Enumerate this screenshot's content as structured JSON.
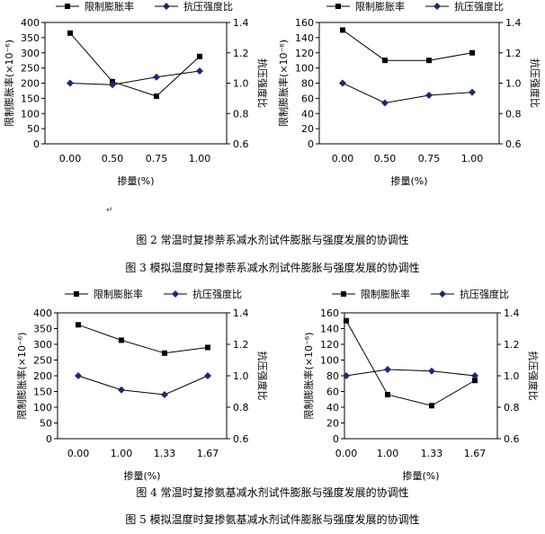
{
  "paragraph_mark": "↵",
  "chart_data": [
    {
      "type": "line",
      "categories": [
        "0.00",
        "0.50",
        "0.75",
        "1.00"
      ],
      "xlabel": "掺量(%)",
      "ylabel": "限制膨胀率(×10⁻⁶)",
      "y2label": "抗压强度比",
      "ylim": [
        0,
        400
      ],
      "yticks": [
        0,
        50,
        100,
        150,
        200,
        250,
        300,
        350,
        400
      ],
      "y2lim": [
        0.6,
        1.4
      ],
      "y2ticks": [
        "0.6",
        "0.8",
        "1.0",
        "1.2",
        "1.4"
      ],
      "legend": "top",
      "series": [
        {
          "name": "限制膨胀率",
          "axis": "left",
          "marker": "square",
          "values": [
            365,
            205,
            157,
            288
          ]
        },
        {
          "name": "抗压强度比",
          "axis": "right",
          "marker": "diamond",
          "values": [
            1.0,
            0.99,
            1.04,
            1.08
          ]
        }
      ]
    },
    {
      "type": "line",
      "categories": [
        "0.00",
        "0.50",
        "0.75",
        "1.00"
      ],
      "xlabel": "掺量(%)",
      "ylabel": "限制膨胀率(×10⁻⁶)",
      "y2label": "抗压强度比",
      "ylim": [
        0,
        160
      ],
      "yticks": [
        0,
        20,
        40,
        60,
        80,
        100,
        120,
        140,
        160
      ],
      "y2lim": [
        0.6,
        1.4
      ],
      "y2ticks": [
        "0.6",
        "0.8",
        "1.0",
        "1.2",
        "1.4"
      ],
      "legend": "top",
      "series": [
        {
          "name": "限制膨胀率",
          "axis": "left",
          "marker": "square",
          "values": [
            150,
            110,
            110,
            120
          ]
        },
        {
          "name": "抗压强度比",
          "axis": "right",
          "marker": "diamond",
          "values": [
            1.0,
            0.87,
            0.92,
            0.94
          ]
        }
      ]
    },
    {
      "type": "line",
      "categories": [
        "0.00",
        "1.00",
        "1.33",
        "1.67"
      ],
      "xlabel": "掺量(%)",
      "ylabel": "限制膨胀率(×10⁻⁶)",
      "y2label": "抗压强度比",
      "ylim": [
        0,
        400
      ],
      "yticks": [
        0,
        50,
        100,
        150,
        200,
        250,
        300,
        350,
        400
      ],
      "y2lim": [
        0.6,
        1.4
      ],
      "y2ticks": [
        "0.6",
        "0.8",
        "1.0",
        "1.2",
        "1.4"
      ],
      "legend": "top",
      "series": [
        {
          "name": "限制膨胀率",
          "axis": "left",
          "marker": "square",
          "values": [
            362,
            313,
            272,
            290
          ]
        },
        {
          "name": "抗压强度比",
          "axis": "right",
          "marker": "diamond",
          "values": [
            1.0,
            0.91,
            0.88,
            1.0
          ]
        }
      ]
    },
    {
      "type": "line",
      "categories": [
        "0.00",
        "1.00",
        "1.33",
        "1.67"
      ],
      "xlabel": "掺量(%)",
      "ylabel": "限制膨胀率(×10⁻⁶)",
      "y2label": "抗压强度比",
      "ylim": [
        0,
        160
      ],
      "yticks": [
        0,
        20,
        40,
        60,
        80,
        100,
        120,
        140,
        160
      ],
      "y2lim": [
        0.6,
        1.4
      ],
      "y2ticks": [
        "0.6",
        "0.8",
        "1.0",
        "1.2",
        "1.4"
      ],
      "legend": "top",
      "series": [
        {
          "name": "限制膨胀率",
          "axis": "left",
          "marker": "square",
          "values": [
            150,
            56,
            42,
            74
          ]
        },
        {
          "name": "抗压强度比",
          "axis": "right",
          "marker": "diamond",
          "values": [
            1.0,
            1.04,
            1.03,
            1.0
          ]
        }
      ]
    }
  ],
  "captions": [
    "图 2  常温时复掺萘系减水剂试件膨胀与强度发展的协调性",
    "图 3  模拟温度时复掺萘系减水剂试件膨胀与强度发展的协调性",
    "图 4  常温时复掺氨基减水剂试件膨胀与强度发展的协调性",
    "图 5  模拟温度时复掺氨基减水剂试件膨胀与强度发展的协调性"
  ]
}
